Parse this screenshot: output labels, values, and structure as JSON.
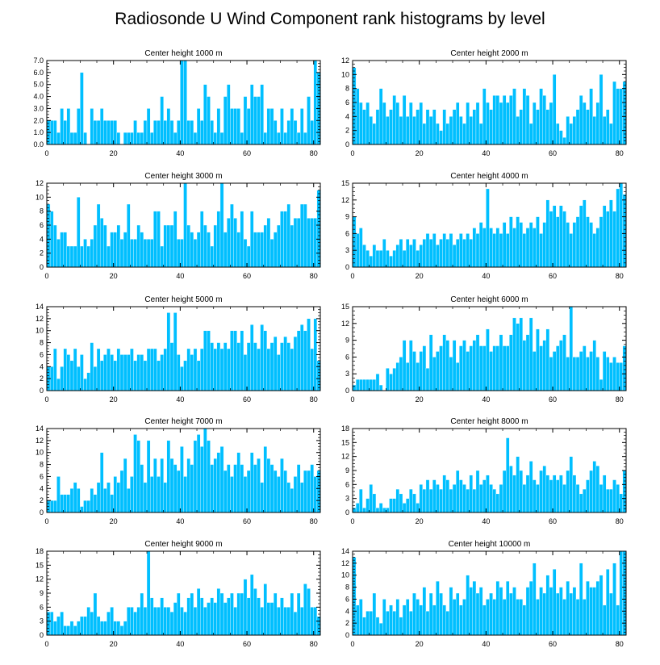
{
  "figure_title": "Radiosonde U Wind Component rank histograms by level",
  "colors": {
    "bar": "#00bfff",
    "axis": "#000000",
    "background": "#ffffff"
  },
  "chart_data": [
    {
      "type": "bar",
      "title": "Center height 1000 m",
      "xlim": [
        0,
        82
      ],
      "ylim": [
        0,
        7
      ],
      "xticks": [
        0,
        20,
        40,
        60,
        80
      ],
      "yticks": [
        0,
        1,
        2,
        3,
        4,
        5,
        6,
        7
      ],
      "ytick_labels": [
        "0.0",
        "1.0",
        "2.0",
        "3.0",
        "4.0",
        "5.0",
        "6.0",
        "7.0"
      ],
      "values": [
        2,
        2,
        2,
        1,
        3,
        2,
        3,
        1,
        1,
        3,
        6,
        1,
        0,
        3,
        2,
        2,
        3,
        2,
        2,
        2,
        2,
        1,
        0,
        1,
        1,
        1,
        2,
        1,
        1,
        2,
        3,
        1,
        2,
        2,
        4,
        2,
        3,
        2,
        1,
        2,
        7,
        7,
        2,
        2,
        1,
        3,
        2,
        5,
        4,
        2,
        1,
        3,
        1,
        4,
        5,
        3,
        3,
        3,
        1,
        4,
        3,
        5,
        4,
        4,
        5,
        1,
        3,
        3,
        2,
        1,
        3,
        1,
        2,
        3,
        2,
        1,
        3,
        1,
        4,
        2,
        7,
        6
      ]
    },
    {
      "type": "bar",
      "title": "Center height 2000 m",
      "xlim": [
        0,
        82
      ],
      "ylim": [
        0,
        12
      ],
      "xticks": [
        0,
        20,
        40,
        60,
        80
      ],
      "yticks": [
        0,
        2,
        4,
        6,
        8,
        10,
        12
      ],
      "ytick_labels": [
        "0",
        "2",
        "4",
        "6",
        "8",
        "10",
        "12"
      ],
      "values": [
        11,
        8,
        6,
        5,
        6,
        4,
        3,
        5,
        8,
        6,
        4,
        5,
        7,
        6,
        4,
        7,
        4,
        6,
        4,
        5,
        6,
        3,
        5,
        4,
        5,
        3,
        2,
        5,
        3,
        4,
        5,
        6,
        4,
        3,
        6,
        4,
        5,
        6,
        3,
        8,
        6,
        5,
        7,
        7,
        6,
        7,
        6,
        7,
        8,
        4,
        5,
        8,
        7,
        3,
        6,
        5,
        8,
        7,
        5,
        6,
        10,
        3,
        2,
        1,
        4,
        3,
        4,
        5,
        7,
        6,
        5,
        8,
        4,
        6,
        10,
        4,
        5,
        3,
        9,
        8,
        8,
        9
      ]
    },
    {
      "type": "bar",
      "title": "Center height 3000 m",
      "xlim": [
        0,
        82
      ],
      "ylim": [
        0,
        12
      ],
      "xticks": [
        0,
        20,
        40,
        60,
        80
      ],
      "yticks": [
        0,
        2,
        4,
        6,
        8,
        10,
        12
      ],
      "ytick_labels": [
        "0",
        "2",
        "4",
        "6",
        "8",
        "10",
        "12"
      ],
      "values": [
        9,
        8,
        6,
        4,
        5,
        5,
        3,
        3,
        3,
        10,
        3,
        4,
        3,
        4,
        6,
        9,
        7,
        6,
        3,
        5,
        5,
        6,
        4,
        5,
        9,
        4,
        4,
        6,
        5,
        4,
        4,
        4,
        8,
        8,
        3,
        6,
        6,
        6,
        8,
        4,
        4,
        12,
        6,
        5,
        4,
        5,
        8,
        6,
        5,
        3,
        6,
        8,
        12,
        5,
        7,
        9,
        7,
        5,
        8,
        4,
        3,
        8,
        5,
        5,
        5,
        6,
        7,
        4,
        5,
        6,
        8,
        8,
        9,
        6,
        7,
        7,
        9,
        9,
        7,
        7,
        7,
        11
      ]
    },
    {
      "type": "bar",
      "title": "Center height 4000 m",
      "xlim": [
        0,
        82
      ],
      "ylim": [
        0,
        15
      ],
      "xticks": [
        0,
        20,
        40,
        60,
        80
      ],
      "yticks": [
        0,
        3,
        6,
        9,
        12,
        15
      ],
      "ytick_labels": [
        "0",
        "3",
        "6",
        "9",
        "12",
        "15"
      ],
      "values": [
        9,
        6,
        7,
        4,
        3,
        2,
        4,
        3,
        3,
        5,
        3,
        2,
        3,
        4,
        5,
        3,
        5,
        4,
        5,
        3,
        4,
        5,
        6,
        5,
        6,
        4,
        5,
        6,
        5,
        6,
        4,
        5,
        6,
        5,
        6,
        5,
        7,
        6,
        8,
        7,
        14,
        7,
        6,
        7,
        6,
        8,
        6,
        9,
        7,
        9,
        8,
        6,
        7,
        8,
        7,
        9,
        6,
        8,
        12,
        10,
        11,
        9,
        11,
        10,
        8,
        6,
        8,
        9,
        11,
        12,
        9,
        8,
        6,
        7,
        9,
        11,
        10,
        12,
        10,
        14,
        15,
        13
      ]
    },
    {
      "type": "bar",
      "title": "Center height 5000 m",
      "xlim": [
        0,
        82
      ],
      "ylim": [
        0,
        14
      ],
      "xticks": [
        0,
        20,
        40,
        60,
        80
      ],
      "yticks": [
        0,
        2,
        4,
        6,
        8,
        10,
        12,
        14
      ],
      "ytick_labels": [
        "0",
        "2",
        "4",
        "6",
        "8",
        "10",
        "12",
        "14"
      ],
      "values": [
        4,
        4,
        7,
        2,
        4,
        7,
        6,
        5,
        7,
        4,
        6,
        2,
        3,
        8,
        4,
        7,
        5,
        6,
        7,
        6,
        5,
        7,
        6,
        6,
        6,
        7,
        5,
        6,
        6,
        5,
        7,
        7,
        7,
        5,
        6,
        7,
        13,
        8,
        13,
        6,
        4,
        5,
        7,
        6,
        7,
        5,
        7,
        10,
        10,
        8,
        7,
        8,
        7,
        8,
        7,
        10,
        10,
        8,
        10,
        6,
        8,
        11,
        8,
        7,
        11,
        10,
        7,
        8,
        9,
        6,
        8,
        9,
        8,
        7,
        9,
        10,
        11,
        10,
        12,
        7,
        12,
        5
      ]
    },
    {
      "type": "bar",
      "title": "Center height 6000 m",
      "xlim": [
        0,
        82
      ],
      "ylim": [
        0,
        15
      ],
      "xticks": [
        0,
        20,
        40,
        60,
        80
      ],
      "yticks": [
        0,
        3,
        6,
        9,
        12,
        15
      ],
      "ytick_labels": [
        "0",
        "3",
        "6",
        "9",
        "12",
        "15"
      ],
      "values": [
        1,
        2,
        2,
        2,
        2,
        2,
        2,
        3,
        1,
        0,
        4,
        3,
        4,
        5,
        6,
        9,
        5,
        9,
        7,
        5,
        7,
        8,
        4,
        10,
        6,
        7,
        8,
        10,
        9,
        6,
        9,
        5,
        8,
        9,
        7,
        8,
        9,
        10,
        8,
        8,
        11,
        7,
        8,
        8,
        10,
        8,
        8,
        10,
        13,
        12,
        13,
        9,
        10,
        13,
        7,
        11,
        8,
        9,
        11,
        6,
        7,
        8,
        9,
        10,
        6,
        15,
        6,
        6,
        7,
        8,
        6,
        7,
        9,
        6,
        2,
        7,
        6,
        5,
        6,
        5,
        5,
        8
      ]
    },
    {
      "type": "bar",
      "title": "Center height 7000 m",
      "xlim": [
        0,
        82
      ],
      "ylim": [
        0,
        14
      ],
      "xticks": [
        0,
        20,
        40,
        60,
        80
      ],
      "yticks": [
        0,
        2,
        4,
        6,
        8,
        10,
        12,
        14
      ],
      "ytick_labels": [
        "0",
        "2",
        "4",
        "6",
        "8",
        "10",
        "12",
        "14"
      ],
      "values": [
        2,
        2,
        2,
        6,
        3,
        3,
        3,
        4,
        5,
        4,
        1,
        2,
        2,
        4,
        3,
        5,
        10,
        4,
        5,
        3,
        6,
        5,
        7,
        9,
        4,
        6,
        13,
        12,
        8,
        5,
        12,
        6,
        9,
        6,
        9,
        5,
        12,
        9,
        8,
        7,
        11,
        6,
        9,
        8,
        12,
        13,
        11,
        14,
        12,
        8,
        9,
        10,
        11,
        7,
        8,
        6,
        8,
        10,
        8,
        6,
        7,
        10,
        8,
        9,
        5,
        11,
        9,
        8,
        7,
        6,
        9,
        7,
        5,
        4,
        6,
        8,
        5,
        7,
        7,
        8,
        6,
        7
      ]
    },
    {
      "type": "bar",
      "title": "Center height 8000 m",
      "xlim": [
        0,
        82
      ],
      "ylim": [
        0,
        18
      ],
      "xticks": [
        0,
        20,
        40,
        60,
        80
      ],
      "yticks": [
        0,
        3,
        6,
        9,
        12,
        15,
        18
      ],
      "ytick_labels": [
        "0",
        "3",
        "6",
        "9",
        "12",
        "15",
        "18"
      ],
      "values": [
        1,
        2,
        5,
        1,
        3,
        6,
        4,
        1,
        2,
        1,
        1,
        3,
        3,
        5,
        4,
        2,
        3,
        5,
        4,
        2,
        6,
        5,
        7,
        5,
        7,
        6,
        5,
        8,
        7,
        5,
        6,
        9,
        7,
        6,
        5,
        8,
        5,
        9,
        6,
        7,
        8,
        6,
        5,
        4,
        6,
        9,
        16,
        10,
        8,
        12,
        9,
        6,
        8,
        11,
        7,
        6,
        9,
        10,
        8,
        7,
        8,
        7,
        8,
        6,
        9,
        12,
        8,
        6,
        4,
        5,
        7,
        9,
        11,
        10,
        6,
        8,
        5,
        5,
        7,
        6,
        4,
        9
      ]
    },
    {
      "type": "bar",
      "title": "Center height 9000 m",
      "xlim": [
        0,
        82
      ],
      "ylim": [
        0,
        18
      ],
      "xticks": [
        0,
        20,
        40,
        60,
        80
      ],
      "yticks": [
        0,
        3,
        6,
        9,
        12,
        15,
        18
      ],
      "ytick_labels": [
        "0",
        "3",
        "6",
        "9",
        "12",
        "15",
        "18"
      ],
      "values": [
        5,
        5,
        3,
        4,
        5,
        2,
        2,
        3,
        2,
        3,
        4,
        4,
        6,
        5,
        9,
        4,
        3,
        3,
        5,
        6,
        3,
        3,
        2,
        3,
        6,
        6,
        5,
        6,
        9,
        6,
        18,
        8,
        6,
        6,
        8,
        6,
        6,
        5,
        7,
        9,
        6,
        5,
        8,
        9,
        6,
        10,
        8,
        6,
        7,
        8,
        7,
        10,
        9,
        7,
        8,
        9,
        6,
        9,
        9,
        12,
        8,
        13,
        10,
        8,
        6,
        11,
        7,
        7,
        9,
        6,
        8,
        6,
        6,
        9,
        5,
        9,
        6,
        11,
        10,
        6,
        6,
        4
      ]
    },
    {
      "type": "bar",
      "title": "Center height 10000 m",
      "xlim": [
        0,
        82
      ],
      "ylim": [
        0,
        14
      ],
      "xticks": [
        0,
        20,
        40,
        60,
        80
      ],
      "yticks": [
        0,
        2,
        4,
        6,
        8,
        10,
        12,
        14
      ],
      "ytick_labels": [
        "0",
        "2",
        "4",
        "6",
        "8",
        "10",
        "12",
        "14"
      ],
      "values": [
        13,
        5,
        6,
        3,
        4,
        4,
        7,
        3,
        2,
        6,
        4,
        5,
        4,
        6,
        3,
        5,
        6,
        4,
        7,
        6,
        5,
        8,
        4,
        7,
        5,
        9,
        7,
        5,
        4,
        8,
        6,
        7,
        5,
        6,
        10,
        8,
        9,
        7,
        8,
        5,
        6,
        7,
        6,
        9,
        8,
        6,
        9,
        7,
        8,
        6,
        6,
        5,
        8,
        9,
        12,
        6,
        8,
        7,
        10,
        8,
        11,
        7,
        8,
        6,
        9,
        7,
        8,
        6,
        12,
        6,
        9,
        8,
        8,
        9,
        10,
        5,
        11,
        7,
        12,
        5,
        14,
        14
      ]
    }
  ]
}
